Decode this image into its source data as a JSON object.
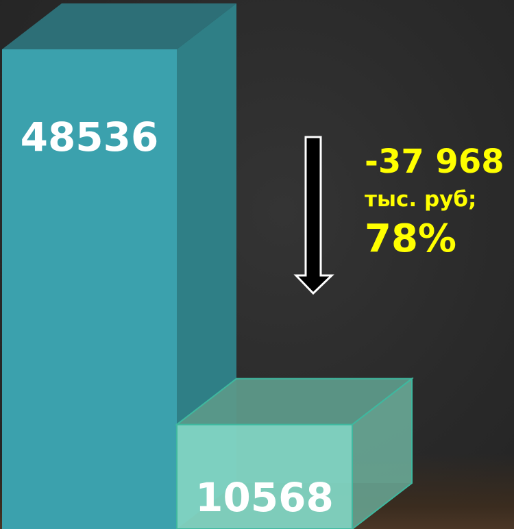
{
  "chart_data": {
    "type": "bar",
    "categories": [
      "",
      ""
    ],
    "values": [
      48536,
      10568
    ],
    "value_labels": [
      "48536",
      "10568"
    ],
    "colors": {
      "bar1_front": "#3ba1ad",
      "bar1_side": "#2f7f86",
      "bar1_top": "#2d6f77",
      "bar2_front": "#82d5c3",
      "bar2_side": "#6aa997",
      "bar2_top": "#5d9a8a"
    },
    "annotation": {
      "change": "-37 968",
      "unit": "тыс. руб;",
      "percent": "78%",
      "color": "#ffff00",
      "arrow": "down-arrow-icon"
    }
  }
}
